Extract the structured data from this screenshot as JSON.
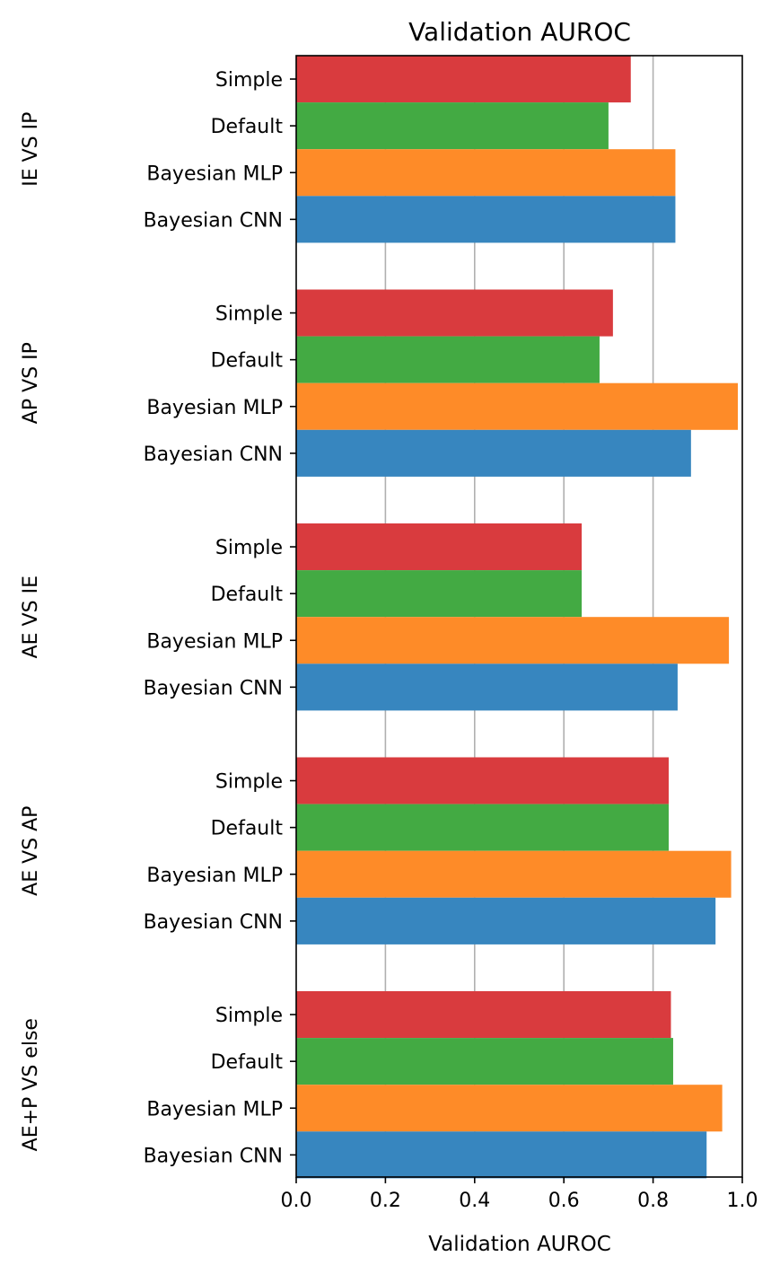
{
  "chart_data": {
    "type": "bar",
    "orientation": "horizontal",
    "title": "Validation AUROC",
    "xlabel": "Validation AUROC",
    "xlim": [
      0,
      1.0
    ],
    "xticks": [
      "0.0",
      "0.2",
      "0.4",
      "0.6",
      "0.8",
      "1.0"
    ],
    "grid": "vertical",
    "colors": {
      "Simple": "#d93b3e",
      "Default": "#43aa43",
      "Bayesian MLP": "#fe8b28",
      "Bayesian CNN": "#3786bf"
    },
    "groups": [
      {
        "label": "IE VS IP",
        "bars": [
          {
            "name": "Simple",
            "value": 0.75
          },
          {
            "name": "Default",
            "value": 0.7
          },
          {
            "name": "Bayesian MLP",
            "value": 0.85
          },
          {
            "name": "Bayesian CNN",
            "value": 0.85
          }
        ]
      },
      {
        "label": "AP VS IP",
        "bars": [
          {
            "name": "Simple",
            "value": 0.71
          },
          {
            "name": "Default",
            "value": 0.68
          },
          {
            "name": "Bayesian MLP",
            "value": 0.99
          },
          {
            "name": "Bayesian CNN",
            "value": 0.885
          }
        ]
      },
      {
        "label": "AE VS IE",
        "bars": [
          {
            "name": "Simple",
            "value": 0.64
          },
          {
            "name": "Default",
            "value": 0.64
          },
          {
            "name": "Bayesian MLP",
            "value": 0.97
          },
          {
            "name": "Bayesian CNN",
            "value": 0.855
          }
        ]
      },
      {
        "label": "AE VS AP",
        "bars": [
          {
            "name": "Simple",
            "value": 0.835
          },
          {
            "name": "Default",
            "value": 0.835
          },
          {
            "name": "Bayesian MLP",
            "value": 0.975
          },
          {
            "name": "Bayesian CNN",
            "value": 0.94
          }
        ]
      },
      {
        "label": "AE+P VS else",
        "bars": [
          {
            "name": "Simple",
            "value": 0.84
          },
          {
            "name": "Default",
            "value": 0.845
          },
          {
            "name": "Bayesian MLP",
            "value": 0.955
          },
          {
            "name": "Bayesian CNN",
            "value": 0.92
          }
        ]
      }
    ]
  }
}
